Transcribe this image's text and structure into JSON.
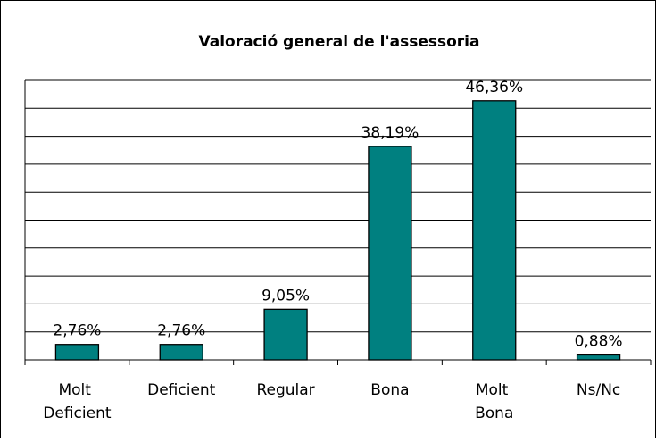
{
  "chart_data": {
    "type": "bar",
    "title": "Valoració general de l'assessoria",
    "categories": [
      "Molt Deficient",
      "Deficient",
      "Regular",
      "Bona",
      "Molt Bona",
      "Ns/Nc"
    ],
    "values": [
      2.76,
      2.76,
      9.05,
      38.19,
      46.36,
      0.88
    ],
    "value_labels": [
      "2,76%",
      "2,76%",
      "9,05%",
      "38,19%",
      "46,36%",
      "0,88%"
    ],
    "color": "#008080",
    "ylim": [
      0,
      50
    ],
    "yticks": [
      0,
      5,
      10,
      15,
      20,
      25,
      30,
      35,
      40,
      45,
      50
    ],
    "grid": true
  }
}
